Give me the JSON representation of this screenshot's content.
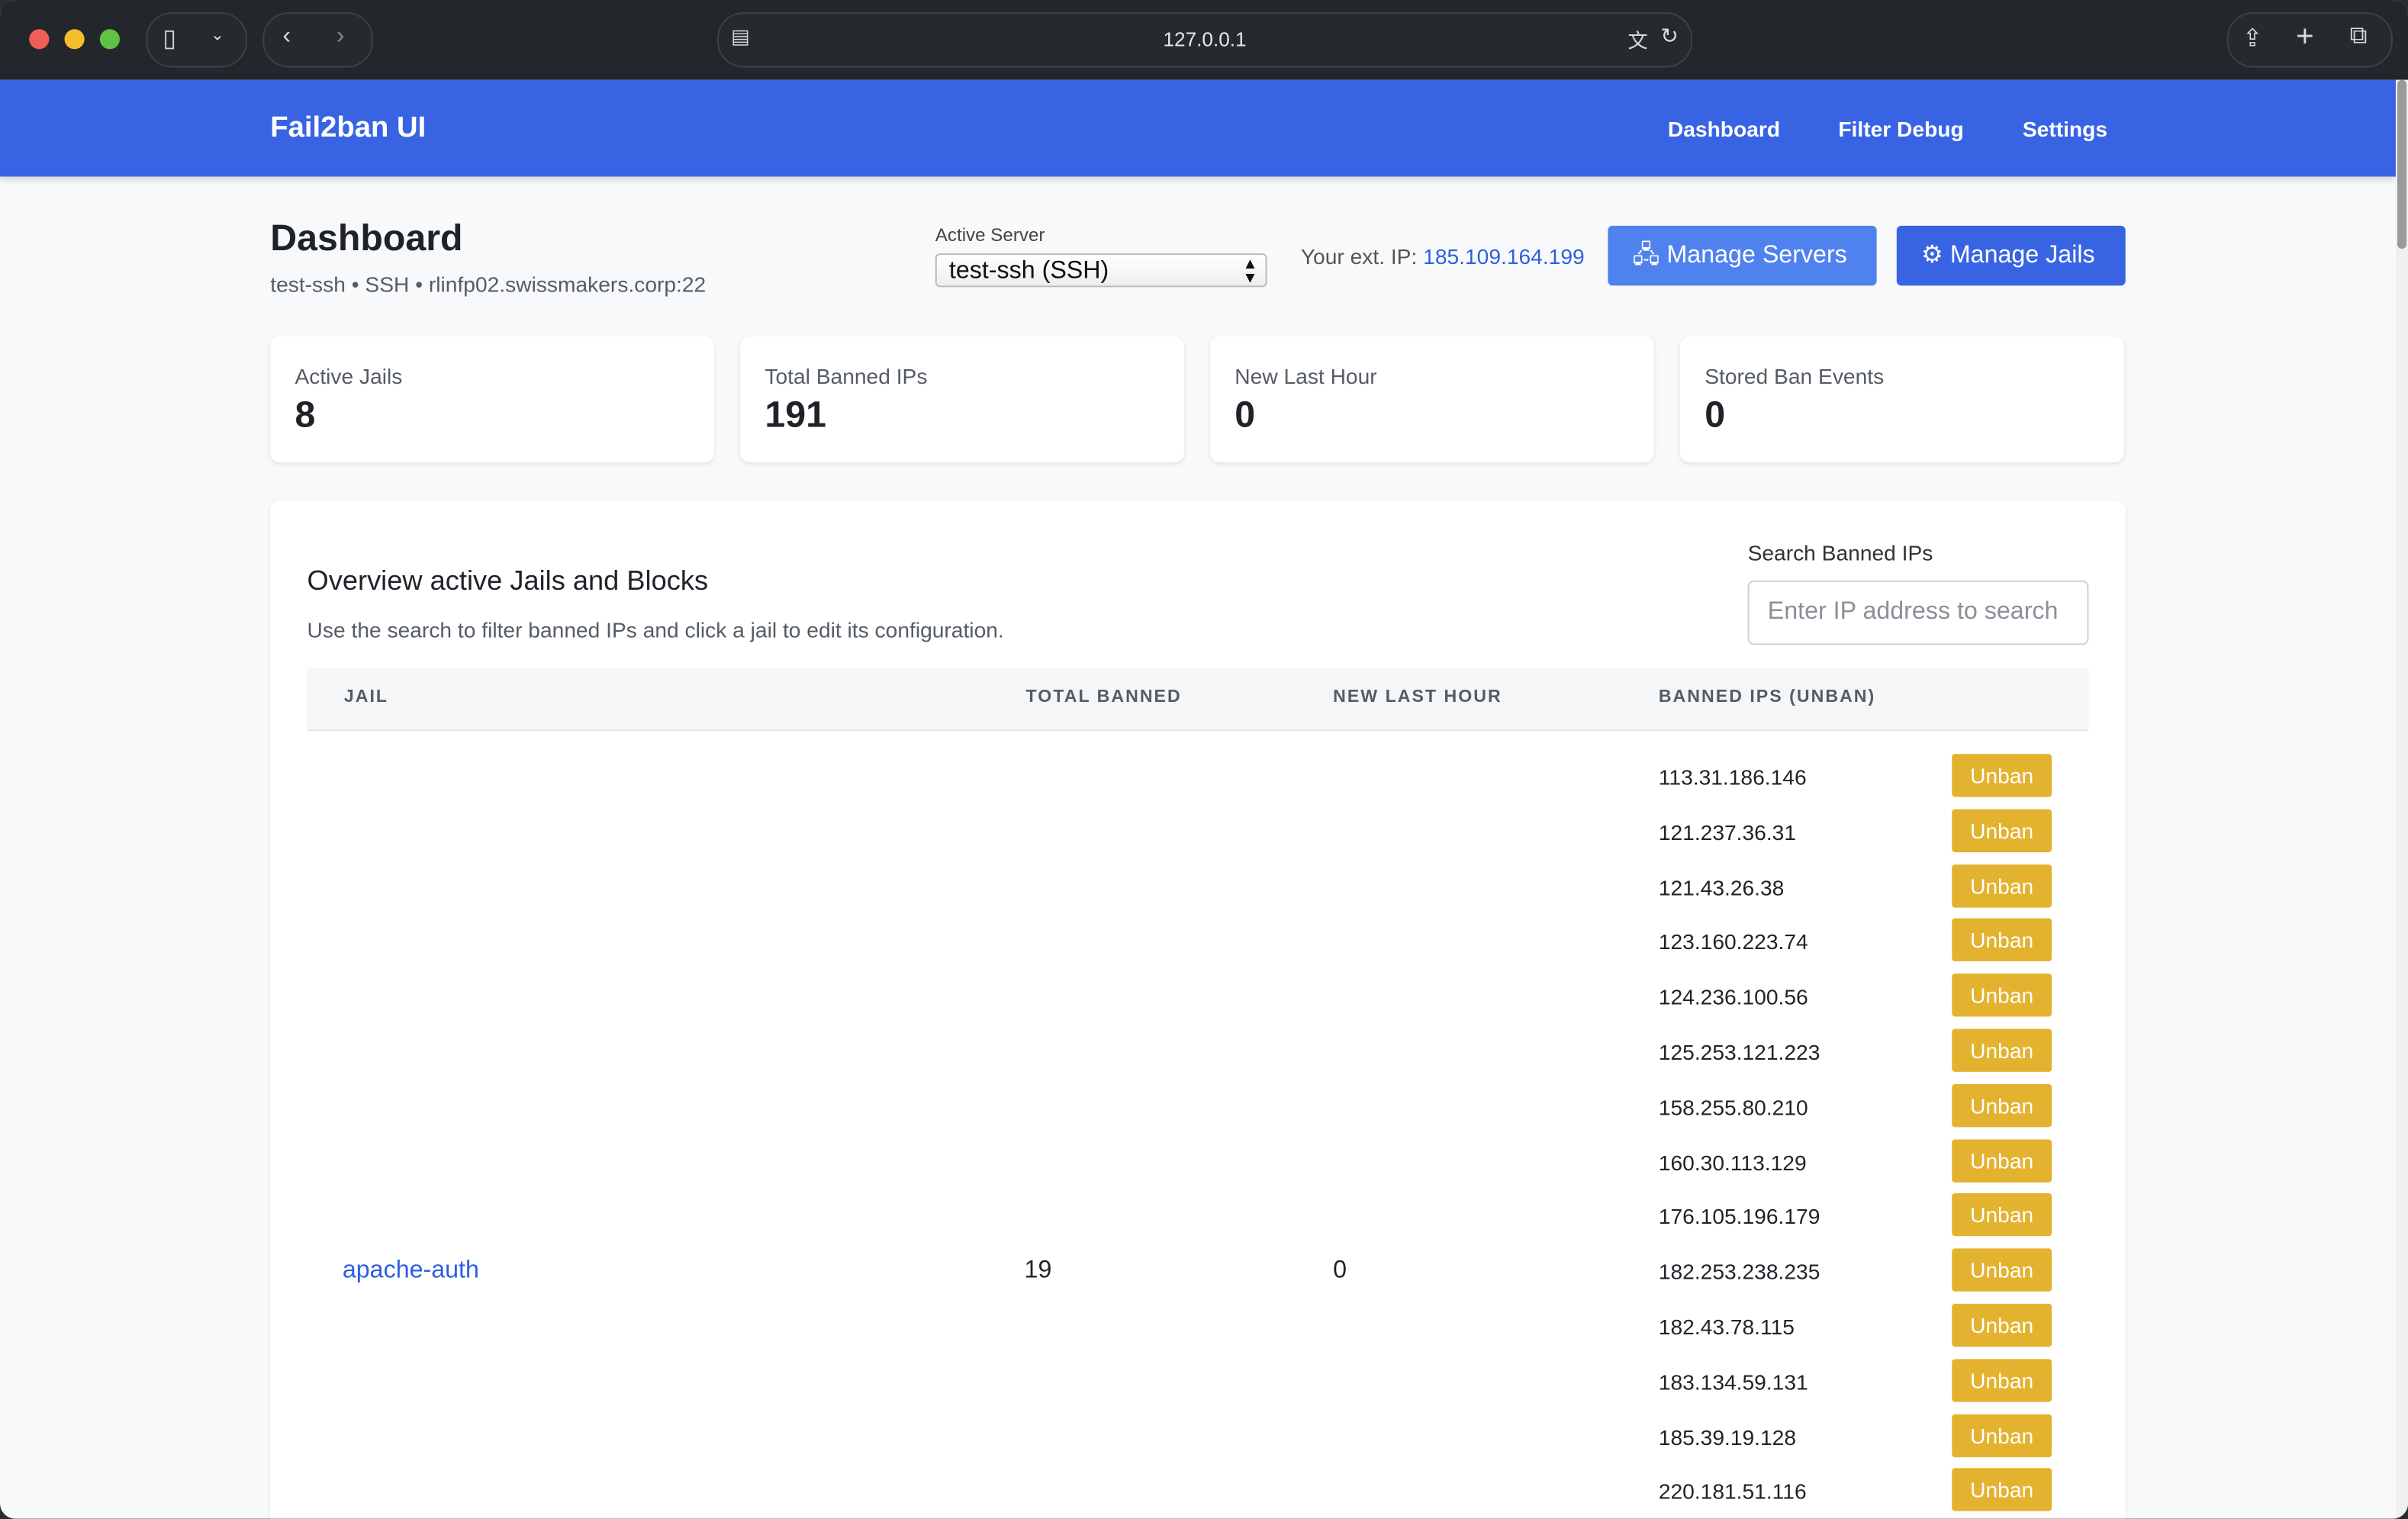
{
  "browser": {
    "url": "127.0.0.1"
  },
  "nav": {
    "brand": "Fail2ban UI",
    "links": [
      "Dashboard",
      "Filter Debug",
      "Settings"
    ]
  },
  "header": {
    "title": "Dashboard",
    "subtitle": "test-ssh • SSH • rlinfp02.swissmakers.corp:22",
    "active_server_label": "Active Server",
    "active_server_value": "test-ssh (SSH)",
    "ext_ip_label": "Your ext. IP:",
    "ext_ip": "185.109.164.199",
    "manage_servers": "Manage Servers",
    "manage_jails": "Manage Jails"
  },
  "stats": [
    {
      "label": "Active Jails",
      "value": "8"
    },
    {
      "label": "Total Banned IPs",
      "value": "191"
    },
    {
      "label": "New Last Hour",
      "value": "0"
    },
    {
      "label": "Stored Ban Events",
      "value": "0"
    }
  ],
  "overview": {
    "title": "Overview active Jails and Blocks",
    "description": "Use the search to filter banned IPs and click a jail to edit its configuration.",
    "search_label": "Search Banned IPs",
    "search_placeholder": "Enter IP address to search",
    "columns": [
      "JAIL",
      "TOTAL BANNED",
      "NEW LAST HOUR",
      "BANNED IPS (UNBAN)"
    ],
    "rows": [
      {
        "jail": "apache-auth",
        "total": "19",
        "new": "0",
        "unban_label": "Unban",
        "ips": [
          "113.31.186.146",
          "121.237.36.31",
          "121.43.26.38",
          "123.160.223.74",
          "124.236.100.56",
          "125.253.121.223",
          "158.255.80.210",
          "160.30.113.129",
          "176.105.196.179",
          "182.253.238.235",
          "182.43.78.115",
          "183.134.59.131",
          "185.39.19.128",
          "220.181.51.116"
        ]
      }
    ]
  },
  "colors": {
    "nav": "#3864e4",
    "unban": "#e3b22f",
    "link": "#2f5fe0"
  }
}
